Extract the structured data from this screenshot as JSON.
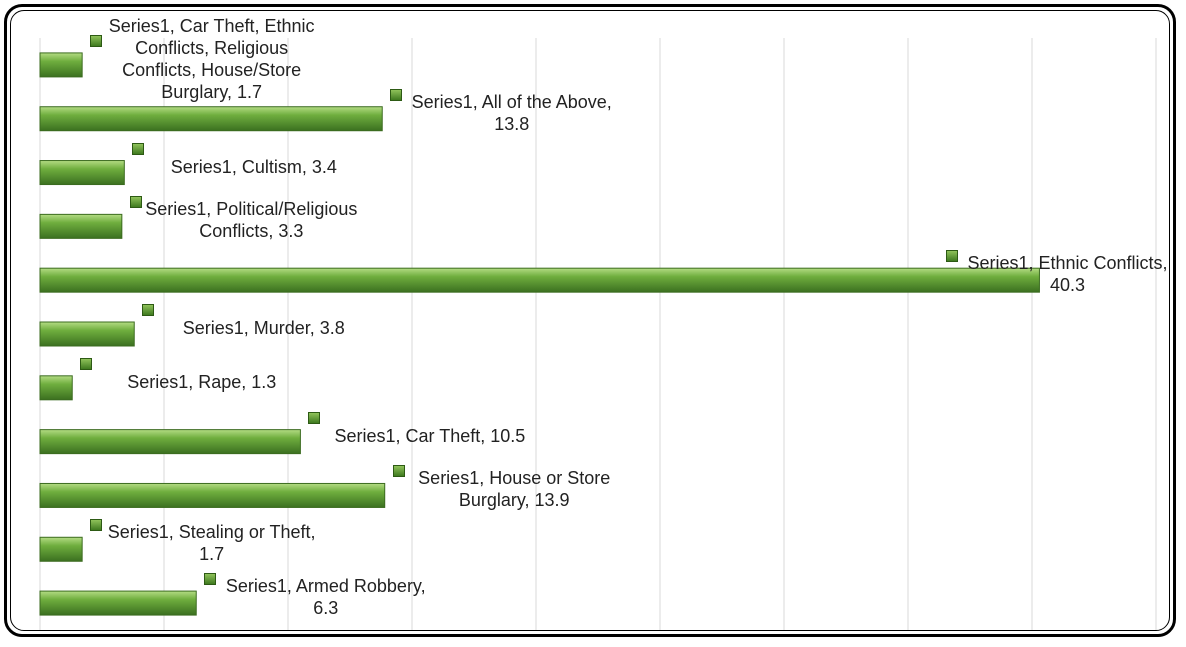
{
  "chart_data": {
    "type": "bar",
    "orientation": "horizontal",
    "color": "#5b9a33",
    "values": [
      1.7,
      13.8,
      3.4,
      3.3,
      40.3,
      3.8,
      1.3,
      10.5,
      13.9,
      1.7,
      6.3
    ],
    "value_labels": [
      "Series1, Car Theft, Ethnic Conflicts, Religious Conflicts, House/Store Burglary, 1.7",
      "Series1, All of the Above, 13.8",
      "Series1, Cultism, 3.4",
      "Series1, Political/Religious Conflicts, 3.3",
      "Series1, Ethnic Conflicts, 40.3",
      "Series1, Murder, 3.8",
      "Series1, Rape, 1.3",
      "Series1, Car Theft, 10.5",
      "Series1, House or Store Burglary, 13.9",
      "Series1, Stealing or Theft, 1.7",
      "Series1, Armed Robbery, 6.3"
    ],
    "xlim": [
      0,
      45
    ],
    "xticks": [
      0,
      5,
      10,
      15,
      20,
      25,
      30,
      35,
      40,
      45
    ],
    "grid": true
  }
}
